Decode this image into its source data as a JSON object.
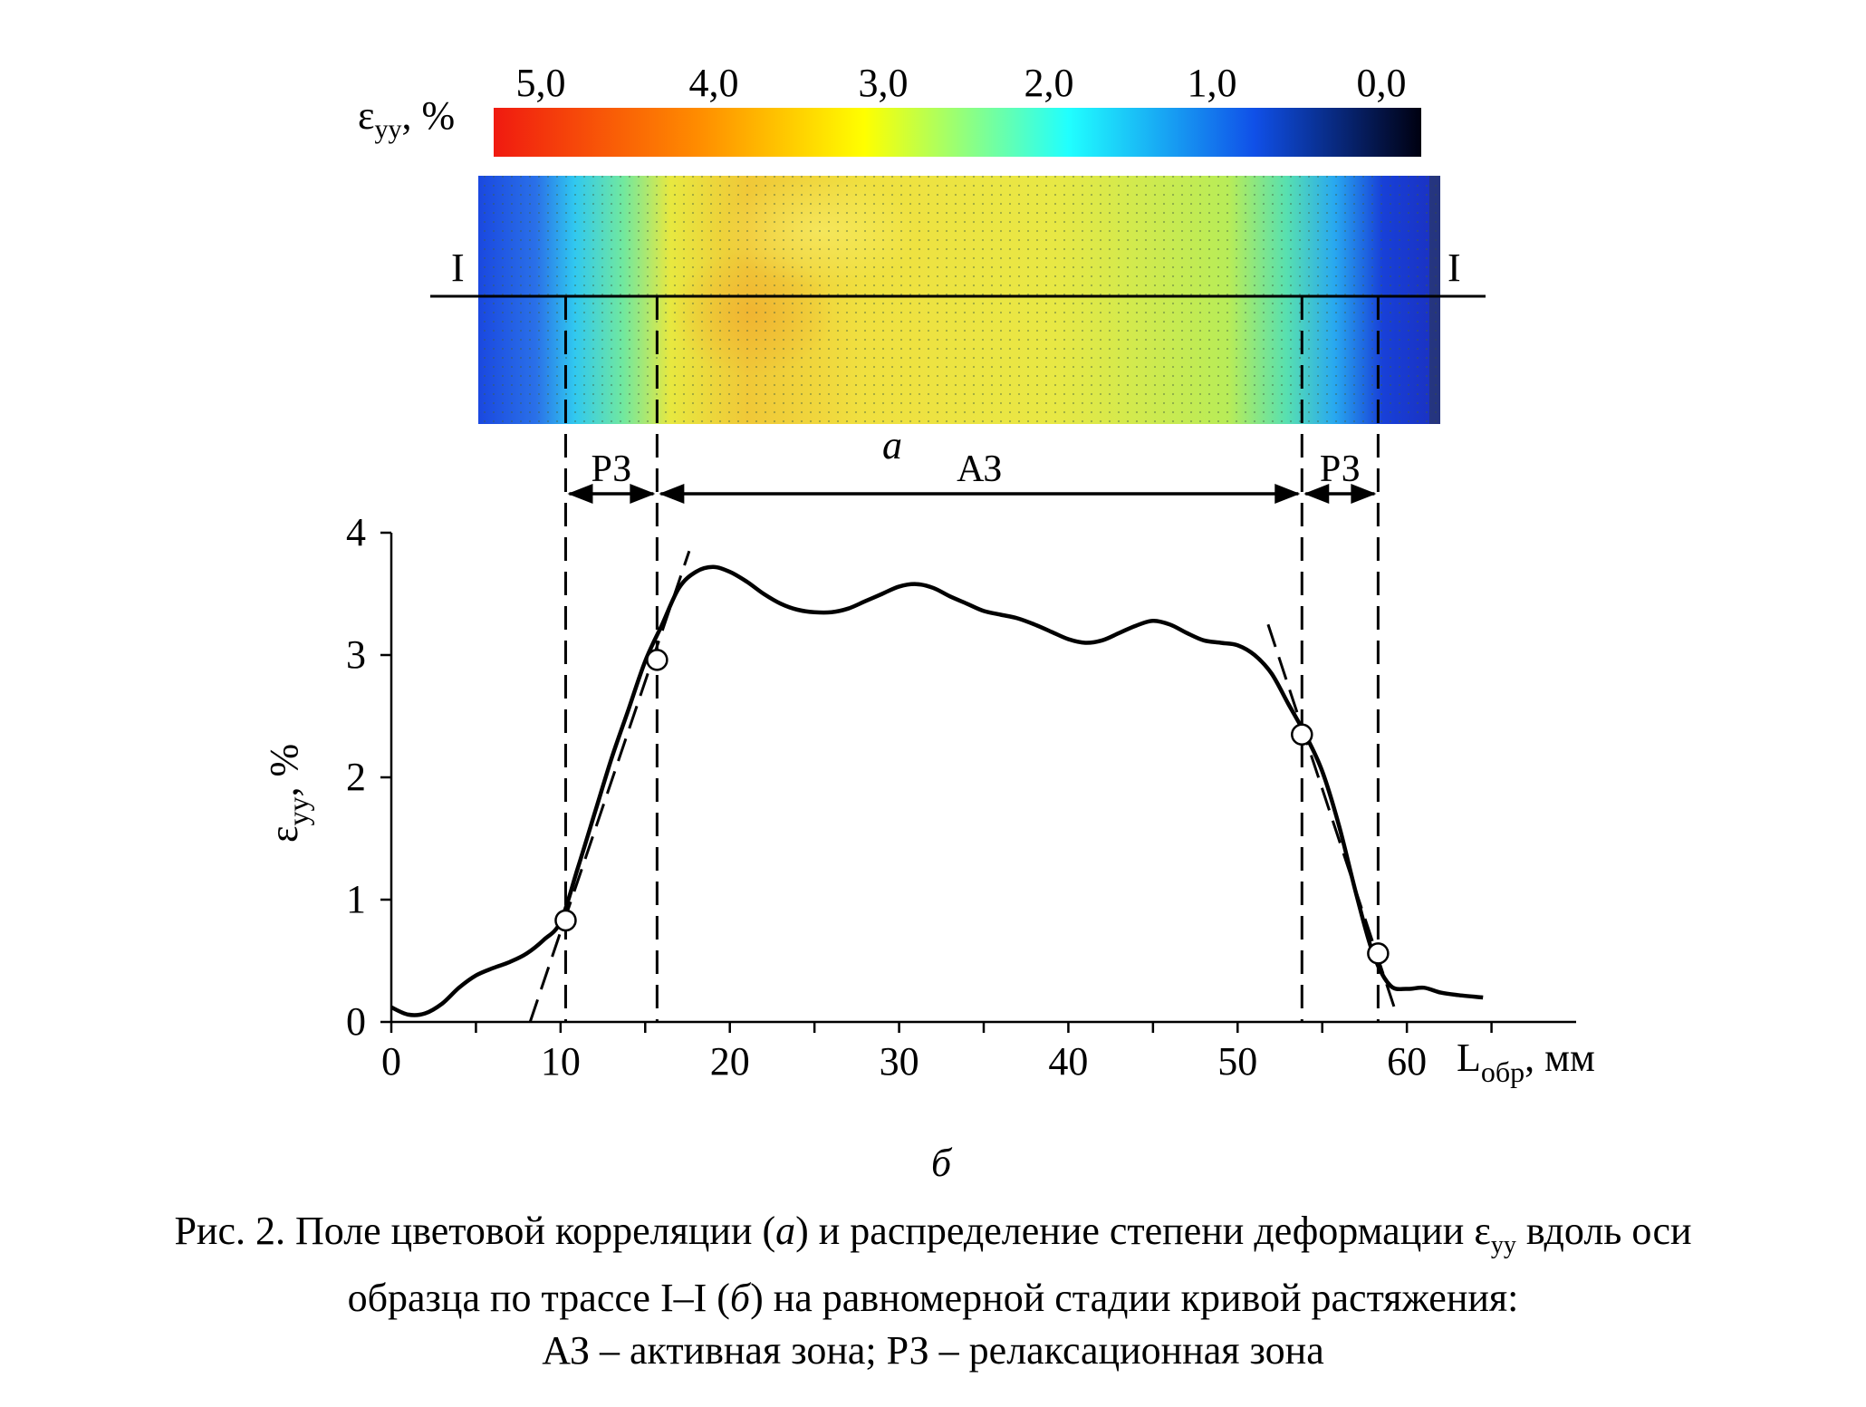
{
  "colorbar": {
    "label_main": "ε",
    "label_sub": "yy",
    "label_tail": ", %",
    "ticks": [
      "5,0",
      "4,0",
      "3,0",
      "2,0",
      "1,0",
      "0,0"
    ],
    "stops": [
      "#f01a10",
      "#ff8c00",
      "#ffff00",
      "#20ffff",
      "#1050e8",
      "#000010"
    ]
  },
  "field": {
    "section_left": "I",
    "section_right": "I",
    "panel_label": "а"
  },
  "zones": {
    "left_relax": "РЗ",
    "active": "АЗ",
    "right_relax": "РЗ"
  },
  "chart_data": {
    "type": "line",
    "xlabel_main": "L",
    "xlabel_sub": "обр",
    "xlabel_tail": ", мм",
    "ylabel_main": "ε",
    "ylabel_sub": "yy",
    "ylabel_tail": ", %",
    "xlim": [
      0,
      70
    ],
    "ylim": [
      0,
      4
    ],
    "xticks": [
      0,
      10,
      20,
      30,
      40,
      50,
      60
    ],
    "yticks": [
      0,
      1,
      2,
      3,
      4
    ],
    "series": [
      {
        "x": [
          0,
          1,
          2,
          3,
          4,
          5,
          6,
          7,
          8,
          9,
          10,
          11,
          12,
          13,
          14,
          15,
          16,
          17,
          18,
          19,
          20,
          21,
          22,
          23,
          24,
          25,
          26,
          27,
          28,
          29,
          30,
          31,
          32,
          33,
          34,
          35,
          36,
          37,
          38,
          39,
          40,
          41,
          42,
          43,
          44,
          45,
          46,
          47,
          48,
          49,
          50,
          51,
          52,
          53,
          54,
          55,
          56,
          57,
          58,
          59,
          60,
          61,
          62,
          63,
          64.5
        ],
        "y": [
          0.12,
          0.06,
          0.07,
          0.15,
          0.28,
          0.38,
          0.44,
          0.49,
          0.56,
          0.67,
          0.82,
          1.25,
          1.7,
          2.15,
          2.55,
          2.95,
          3.25,
          3.55,
          3.68,
          3.72,
          3.68,
          3.6,
          3.5,
          3.42,
          3.37,
          3.35,
          3.35,
          3.38,
          3.44,
          3.5,
          3.56,
          3.58,
          3.55,
          3.48,
          3.42,
          3.36,
          3.33,
          3.3,
          3.25,
          3.19,
          3.13,
          3.1,
          3.12,
          3.18,
          3.24,
          3.28,
          3.25,
          3.18,
          3.12,
          3.1,
          3.08,
          3.0,
          2.85,
          2.6,
          2.35,
          2.05,
          1.6,
          1.05,
          0.56,
          0.3,
          0.27,
          0.28,
          0.24,
          0.22,
          0.2
        ]
      }
    ],
    "markers": [
      {
        "x": 10.3,
        "y": 0.83
      },
      {
        "x": 15.7,
        "y": 2.96
      },
      {
        "x": 53.8,
        "y": 2.35
      },
      {
        "x": 58.3,
        "y": 0.56
      }
    ],
    "tangents": [
      {
        "x1": 8.2,
        "y1": 0.0,
        "x2": 17.6,
        "y2": 3.85
      },
      {
        "x1": 51.8,
        "y1": 3.25,
        "x2": 59.3,
        "y2": 0.1
      }
    ],
    "boundaries_x": [
      10.3,
      15.7,
      53.8,
      58.3
    ]
  },
  "panel_b_label": "б",
  "caption": {
    "line1_a": "Рис. 2. Поле цветовой корреляции (",
    "line1_b": "а",
    "line1_c": ") и распределение степени деформации ε",
    "line1_sub": "yy",
    "line1_d": " вдоль оси",
    "line2_a": "образца по трассе I–I (",
    "line2_b": "б",
    "line2_c": ") на равномерной стадии кривой растяжения:",
    "line3": "АЗ – активная зона; РЗ – релаксационная зона"
  }
}
